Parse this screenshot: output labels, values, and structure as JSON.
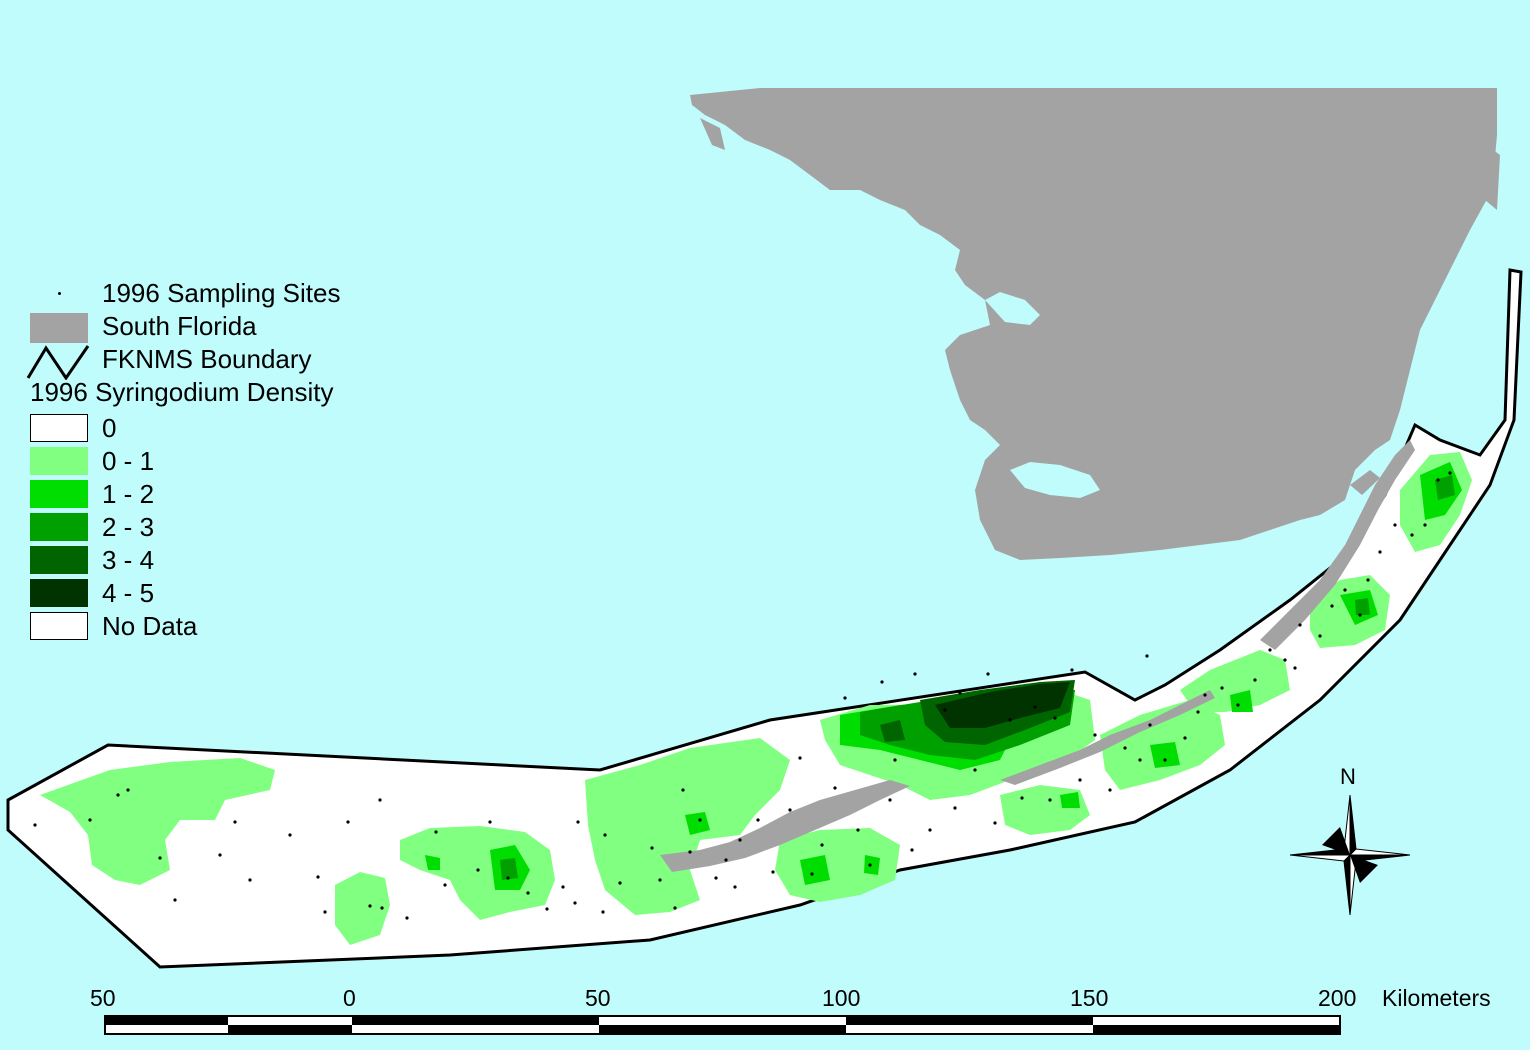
{
  "colors": {
    "water": "#c0fcfc",
    "land": "#a3a3a3",
    "boundary_stroke": "#000000",
    "site_dot": "#000000",
    "density_0": "#ffffff",
    "density_0_1": "#80ff80",
    "density_1_2": "#00dd00",
    "density_2_3": "#00a000",
    "density_3_4": "#006400",
    "density_4_5": "#003300",
    "no_data": "#ffffff"
  },
  "legend": {
    "sites_label": "1996 Sampling Sites",
    "land_label": "South Florida",
    "boundary_label": "FKNMS Boundary",
    "density_title": "1996 Syringodium Density",
    "classes": [
      {
        "label": "0",
        "color": "#ffffff"
      },
      {
        "label": "0 - 1",
        "color": "#80ff80"
      },
      {
        "label": "1 - 2",
        "color": "#00dd00"
      },
      {
        "label": "2 - 3",
        "color": "#00a000"
      },
      {
        "label": "3 - 4",
        "color": "#006400"
      },
      {
        "label": "4 - 5",
        "color": "#003300"
      },
      {
        "label": "No Data",
        "color": "#ffffff"
      }
    ]
  },
  "north_arrow": {
    "label": "N",
    "icon": "compass-rose-icon"
  },
  "scale_bar": {
    "ticks": [
      "50",
      "0",
      "50",
      "100",
      "150",
      "200"
    ],
    "unit": "Kilometers"
  }
}
